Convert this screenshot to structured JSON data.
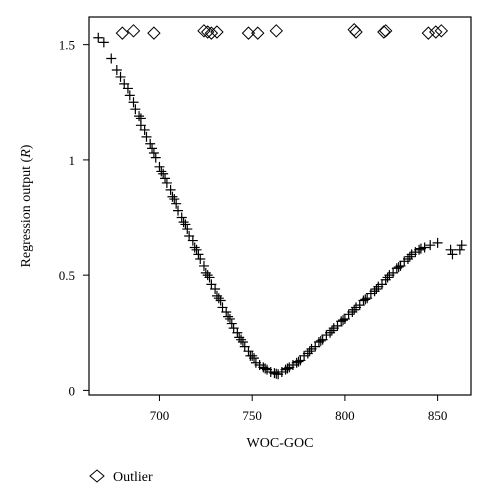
{
  "chart_data": {
    "type": "scatter",
    "xlabel": "WOC-GOC",
    "ylabel_prefix": "Regression output (",
    "ylabel_symbol": "R",
    "ylabel_suffix": ")",
    "xlim": [
      662,
      868
    ],
    "ylim": [
      -0.02,
      1.62
    ],
    "xticks": [
      700,
      750,
      800,
      850
    ],
    "yticks": [
      0,
      0.5,
      1,
      1.5
    ],
    "ytick_labels": [
      "0",
      "0.5",
      "1",
      "1.5"
    ],
    "xtick_labels": [
      "700",
      "750",
      "800",
      "850"
    ],
    "grid": false,
    "legend_position": "bottom-left",
    "series": [
      {
        "marker": "plus",
        "points": [
          [
            667,
            1.53
          ],
          [
            670,
            1.51
          ],
          [
            674,
            1.44
          ],
          [
            677,
            1.39
          ],
          [
            679,
            1.36
          ],
          [
            681,
            1.33
          ],
          [
            683,
            1.31
          ],
          [
            684,
            1.28
          ],
          [
            686,
            1.25
          ],
          [
            687,
            1.22
          ],
          [
            689,
            1.19
          ],
          [
            690,
            1.15
          ],
          [
            692,
            1.13
          ],
          [
            693,
            1.1
          ],
          [
            695,
            1.07
          ],
          [
            697,
            1.03
          ],
          [
            698,
            1.01
          ],
          [
            700,
            0.97
          ],
          [
            701,
            0.95
          ],
          [
            703,
            0.92
          ],
          [
            704,
            0.9
          ],
          [
            706,
            0.87
          ],
          [
            707,
            0.84
          ],
          [
            709,
            0.81
          ],
          [
            710,
            0.78
          ],
          [
            712,
            0.75
          ],
          [
            713,
            0.73
          ],
          [
            715,
            0.7
          ],
          [
            716,
            0.67
          ],
          [
            718,
            0.65
          ],
          [
            719,
            0.62
          ],
          [
            721,
            0.59
          ],
          [
            722,
            0.57
          ],
          [
            724,
            0.54
          ],
          [
            725,
            0.51
          ],
          [
            727,
            0.49
          ],
          [
            728,
            0.46
          ],
          [
            730,
            0.44
          ],
          [
            731,
            0.41
          ],
          [
            733,
            0.39
          ],
          [
            734,
            0.36
          ],
          [
            736,
            0.34
          ],
          [
            737,
            0.32
          ],
          [
            739,
            0.29
          ],
          [
            740,
            0.27
          ],
          [
            742,
            0.25
          ],
          [
            743,
            0.23
          ],
          [
            745,
            0.21
          ],
          [
            746,
            0.19
          ],
          [
            748,
            0.17
          ],
          [
            749,
            0.15
          ],
          [
            751,
            0.14
          ],
          [
            752,
            0.12
          ],
          [
            754,
            0.11
          ],
          [
            756,
            0.1
          ],
          [
            758,
            0.09
          ],
          [
            760,
            0.08
          ],
          [
            762,
            0.075
          ],
          [
            764,
            0.07
          ],
          [
            766,
            0.08
          ],
          [
            768,
            0.09
          ],
          [
            770,
            0.1
          ],
          [
            772,
            0.11
          ],
          [
            774,
            0.12
          ],
          [
            776,
            0.13
          ],
          [
            778,
            0.15
          ],
          [
            780,
            0.16
          ],
          [
            782,
            0.18
          ],
          [
            784,
            0.19
          ],
          [
            786,
            0.21
          ],
          [
            788,
            0.22
          ],
          [
            790,
            0.24
          ],
          [
            792,
            0.25
          ],
          [
            794,
            0.27
          ],
          [
            796,
            0.28
          ],
          [
            798,
            0.3
          ],
          [
            800,
            0.31
          ],
          [
            802,
            0.33
          ],
          [
            804,
            0.34
          ],
          [
            806,
            0.36
          ],
          [
            808,
            0.37
          ],
          [
            810,
            0.39
          ],
          [
            812,
            0.4
          ],
          [
            814,
            0.42
          ],
          [
            816,
            0.43
          ],
          [
            818,
            0.45
          ],
          [
            820,
            0.46
          ],
          [
            822,
            0.48
          ],
          [
            824,
            0.5
          ],
          [
            826,
            0.51
          ],
          [
            828,
            0.53
          ],
          [
            830,
            0.54
          ],
          [
            832,
            0.56
          ],
          [
            834,
            0.57
          ],
          [
            836,
            0.59
          ],
          [
            838,
            0.6
          ],
          [
            840,
            0.61
          ],
          [
            843,
            0.62
          ],
          [
            846,
            0.63
          ],
          [
            850,
            0.64
          ],
          [
            857,
            0.61
          ],
          [
            858,
            0.59
          ],
          [
            862,
            0.61
          ],
          [
            863,
            0.63
          ],
          [
            690,
            1.18
          ],
          [
            696,
            1.05
          ],
          [
            702,
            0.94
          ],
          [
            708,
            0.83
          ],
          [
            714,
            0.72
          ],
          [
            720,
            0.61
          ],
          [
            726,
            0.5
          ],
          [
            732,
            0.4
          ],
          [
            738,
            0.31
          ],
          [
            744,
            0.22
          ],
          [
            750,
            0.15
          ],
          [
            757,
            0.095
          ],
          [
            763,
            0.072
          ],
          [
            769,
            0.095
          ],
          [
            775,
            0.125
          ],
          [
            781,
            0.17
          ],
          [
            787,
            0.215
          ],
          [
            793,
            0.26
          ],
          [
            799,
            0.305
          ],
          [
            805,
            0.35
          ],
          [
            811,
            0.395
          ],
          [
            817,
            0.44
          ],
          [
            823,
            0.49
          ],
          [
            829,
            0.535
          ],
          [
            835,
            0.58
          ],
          [
            841,
            0.615
          ]
        ]
      },
      {
        "name": "Outlier",
        "marker": "diamond",
        "points": [
          [
            680,
            1.55
          ],
          [
            686,
            1.56
          ],
          [
            697,
            1.55
          ],
          [
            724,
            1.56
          ],
          [
            726,
            1.555
          ],
          [
            728,
            1.55
          ],
          [
            731,
            1.555
          ],
          [
            748,
            1.55
          ],
          [
            753,
            1.55
          ],
          [
            763,
            1.56
          ],
          [
            805,
            1.565
          ],
          [
            806,
            1.555
          ],
          [
            821,
            1.555
          ],
          [
            822,
            1.56
          ],
          [
            845,
            1.55
          ],
          [
            849,
            1.555
          ],
          [
            852,
            1.56
          ]
        ]
      }
    ]
  }
}
